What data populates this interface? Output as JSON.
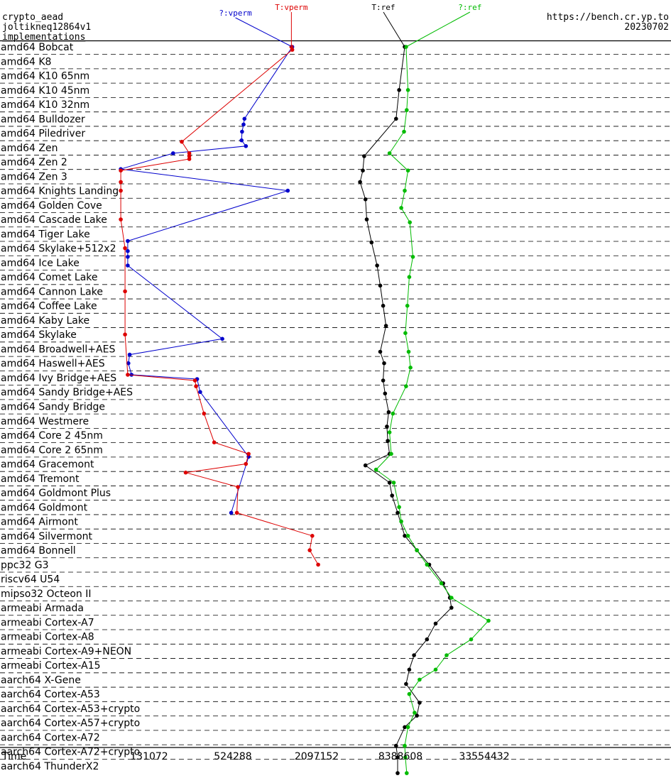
{
  "chart_data": {
    "type": "line",
    "header": {
      "left": [
        "crypto_aead",
        "joltikneq12864v1",
        "implementations"
      ],
      "right": [
        "https://bench.cr.yp.to",
        "20230702"
      ]
    },
    "xlabel": "Time",
    "x_scale": "log2",
    "x_ticks": [
      131072,
      524288,
      2097152,
      8388608,
      33554432
    ],
    "x_tick_labels": [
      "131072",
      "524288",
      "2097152",
      "8388608",
      "33554432"
    ],
    "categories": [
      "amd64 Bobcat",
      "amd64 K8",
      "amd64 K10 65nm",
      "amd64 K10 45nm",
      "amd64 K10 32nm",
      "amd64 Bulldozer",
      "amd64 Piledriver",
      "amd64 Zen",
      "amd64 Zen 2",
      "amd64 Zen 3",
      "amd64 Knights Landing",
      "amd64 Golden Cove",
      "amd64 Cascade Lake",
      "amd64 Tiger Lake",
      "amd64 Skylake+512x2",
      "amd64 Ice Lake",
      "amd64 Comet Lake",
      "amd64 Cannon Lake",
      "amd64 Coffee Lake",
      "amd64 Kaby Lake",
      "amd64 Skylake",
      "amd64 Broadwell+AES",
      "amd64 Haswell+AES",
      "amd64 Ivy Bridge+AES",
      "amd64 Sandy Bridge+AES",
      "amd64 Sandy Bridge",
      "amd64 Westmere",
      "amd64 Core 2 45nm",
      "amd64 Core 2 65nm",
      "amd64 Gracemont",
      "amd64 Tremont",
      "amd64 Goldmont Plus",
      "amd64 Goldmont",
      "amd64 Airmont",
      "amd64 Silvermont",
      "amd64 Bonnell",
      "ppc32 G3",
      "riscv64 U54",
      "mipso32 Octeon II",
      "armeabi Armada",
      "armeabi Cortex-A7",
      "armeabi Cortex-A8",
      "armeabi Cortex-A9+NEON",
      "armeabi Cortex-A15",
      "aarch64 X-Gene",
      "aarch64 Cortex-A53",
      "aarch64 Cortex-A53+crypto",
      "aarch64 Cortex-A57+crypto",
      "aarch64 Cortex-A72",
      "aarch64 Cortex-A72+crypto",
      "aarch64 ThunderX2"
    ],
    "series": [
      {
        "name": "?:vperm",
        "color": "#0000cc",
        "points": [
          [
            0,
            1400000
          ],
          [
            5,
            635000
          ],
          [
            5.4,
            625000
          ],
          [
            5.9,
            610000
          ],
          [
            6.5,
            605000
          ],
          [
            6.9,
            650000
          ],
          [
            7.4,
            195000
          ],
          [
            8.5,
            82000
          ],
          [
            10.0,
            1300000
          ],
          [
            13.5,
            92000
          ],
          [
            14.2,
            92000
          ],
          [
            14.6,
            92000
          ],
          [
            15.2,
            92000
          ],
          [
            20.3,
            440000
          ],
          [
            21.4,
            95000
          ],
          [
            22.0,
            93000
          ],
          [
            22.8,
            98000
          ],
          [
            23.1,
            290000
          ],
          [
            24.0,
            305000
          ],
          [
            28.5,
            680000
          ],
          [
            32.4,
            510000
          ]
        ]
      },
      {
        "name": "T:vperm",
        "color": "#dd0000",
        "points": [
          [
            0,
            1380000
          ],
          [
            0.2,
            1400000
          ],
          [
            6.6,
            225000
          ],
          [
            7.4,
            255000
          ],
          [
            7.6,
            255000
          ],
          [
            7.8,
            255000
          ],
          [
            8.6,
            82000
          ],
          [
            9.4,
            82000
          ],
          [
            10.0,
            82000
          ],
          [
            12.0,
            82000
          ],
          [
            14.0,
            88000
          ],
          [
            17.0,
            88000
          ],
          [
            20.0,
            88000
          ],
          [
            22.8,
            92000
          ],
          [
            23.2,
            280000
          ],
          [
            23.6,
            285000
          ],
          [
            25.5,
            325000
          ],
          [
            27.5,
            385000
          ],
          [
            28.3,
            680000
          ],
          [
            29.0,
            650000
          ],
          [
            29.6,
            240000
          ],
          [
            30.6,
            570000
          ],
          [
            32.4,
            560000
          ],
          [
            34.0,
            1950000
          ],
          [
            35.0,
            1870000
          ],
          [
            36.0,
            2150000
          ]
        ]
      },
      {
        "name": "T:ref",
        "color": "#000000",
        "points": [
          [
            0,
            9000000
          ],
          [
            3,
            8200000
          ],
          [
            5,
            7800000
          ],
          [
            7.6,
            4600000
          ],
          [
            8.6,
            4500000
          ],
          [
            9.4,
            4300000
          ],
          [
            10.6,
            4700000
          ],
          [
            12.0,
            4800000
          ],
          [
            13.6,
            5200000
          ],
          [
            15.2,
            5700000
          ],
          [
            16.6,
            6000000
          ],
          [
            18.0,
            6300000
          ],
          [
            19.4,
            6600000
          ],
          [
            21.2,
            6000000
          ],
          [
            22.0,
            6400000
          ],
          [
            23.2,
            6300000
          ],
          [
            24.1,
            6500000
          ],
          [
            25.4,
            6900000
          ],
          [
            26.4,
            6700000
          ],
          [
            27.4,
            6800000
          ],
          [
            28.3,
            7000000
          ],
          [
            29.1,
            4700000
          ],
          [
            30.3,
            7000000
          ],
          [
            31.2,
            7300000
          ],
          [
            32.4,
            8000000
          ],
          [
            34.0,
            9000000
          ],
          [
            35.0,
            11000000
          ],
          [
            36.0,
            13500000
          ],
          [
            37.3,
            17000000
          ],
          [
            38.3,
            19000000
          ],
          [
            39.0,
            19500000
          ],
          [
            40.1,
            15000000
          ],
          [
            41.2,
            13000000
          ],
          [
            42.3,
            10500000
          ],
          [
            43.3,
            9700000
          ],
          [
            44.3,
            9200000
          ],
          [
            45.6,
            11500000
          ],
          [
            46.5,
            11000000
          ],
          [
            47.3,
            9000000
          ],
          [
            48.6,
            7800000
          ],
          [
            49.4,
            8000000
          ],
          [
            50.5,
            8000000
          ]
        ]
      },
      {
        "name": "?:ref",
        "color": "#00bb00",
        "points": [
          [
            0,
            9200000
          ],
          [
            3,
            9500000
          ],
          [
            4.4,
            9300000
          ],
          [
            5.9,
            8900000
          ],
          [
            7.4,
            7000000
          ],
          [
            8.6,
            9500000
          ],
          [
            10.0,
            9000000
          ],
          [
            11.2,
            8500000
          ],
          [
            12.2,
            9800000
          ],
          [
            14.6,
            10300000
          ],
          [
            16.0,
            9700000
          ],
          [
            18.0,
            9400000
          ],
          [
            19.9,
            9100000
          ],
          [
            21.2,
            9600000
          ],
          [
            22.3,
            9900000
          ],
          [
            23.6,
            9200000
          ],
          [
            25.5,
            7400000
          ],
          [
            26.8,
            7000000
          ],
          [
            28.3,
            7200000
          ],
          [
            29.4,
            5600000
          ],
          [
            30.3,
            7500000
          ],
          [
            32.0,
            8200000
          ],
          [
            33.0,
            8500000
          ],
          [
            34.0,
            9500000
          ],
          [
            35.0,
            11000000
          ],
          [
            36.0,
            13000000
          ],
          [
            37.3,
            16500000
          ],
          [
            38.3,
            19500000
          ],
          [
            39.9,
            36000000
          ],
          [
            41.2,
            27000000
          ],
          [
            42.3,
            18000000
          ],
          [
            43.3,
            15000000
          ],
          [
            44.0,
            11500000
          ],
          [
            45.0,
            9700000
          ],
          [
            46.3,
            10600000
          ],
          [
            47.3,
            9500000
          ],
          [
            48.6,
            9000000
          ],
          [
            49.4,
            9100000
          ],
          [
            50.5,
            9300000
          ]
        ]
      }
    ],
    "legend": [
      {
        "label": "?:vperm",
        "color": "#0000cc"
      },
      {
        "label": "T:vperm",
        "color": "#dd0000"
      },
      {
        "label": "T:ref",
        "color": "#000000"
      },
      {
        "label": "?:ref",
        "color": "#00bb00"
      }
    ]
  }
}
